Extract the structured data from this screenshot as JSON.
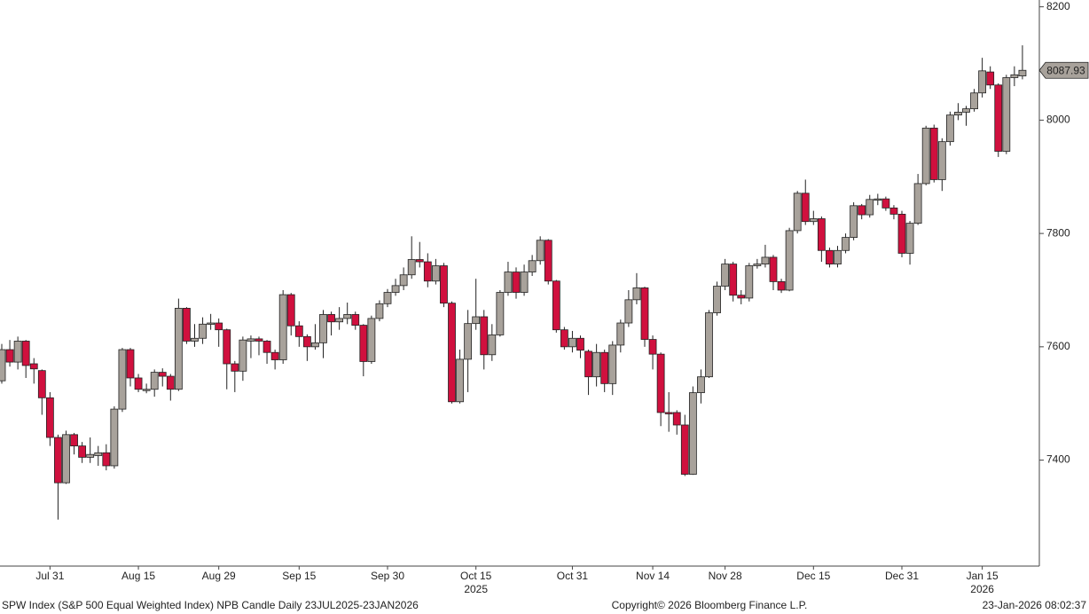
{
  "chart_data": {
    "type": "candlestick",
    "categories": [
      null,
      null,
      null,
      null,
      null,
      null,
      "Jul 31",
      null,
      null,
      null,
      null,
      null,
      null,
      null,
      null,
      null,
      null,
      "Aug 15",
      null,
      null,
      null,
      null,
      null,
      null,
      null,
      null,
      null,
      "Aug 29",
      null,
      null,
      null,
      null,
      null,
      null,
      null,
      null,
      null,
      "Sep 15",
      null,
      null,
      null,
      null,
      null,
      null,
      null,
      null,
      null,
      null,
      "Sep 30",
      null,
      null,
      null,
      null,
      null,
      null,
      null,
      null,
      null,
      null,
      "Oct 15",
      null,
      null,
      null,
      null,
      null,
      null,
      null,
      null,
      null,
      null,
      null,
      "Oct 31",
      null,
      null,
      null,
      null,
      null,
      null,
      null,
      null,
      null,
      "Nov 14",
      null,
      null,
      null,
      null,
      null,
      null,
      null,
      null,
      "Nov 28",
      null,
      null,
      null,
      null,
      null,
      null,
      null,
      null,
      null,
      null,
      "Dec 15",
      null,
      null,
      null,
      null,
      null,
      null,
      null,
      null,
      null,
      null,
      "Dec 31",
      null,
      null,
      null,
      null,
      null,
      null,
      null,
      null,
      null,
      "Jan 15",
      null,
      null,
      null,
      null,
      null
    ],
    "year_labels": [
      {
        "label": "2025",
        "at": "Oct 15"
      },
      {
        "label": "2026",
        "at": "Jan 15"
      }
    ],
    "open": [
      7540,
      7595,
      7573,
      7610,
      7570,
      7558,
      7510,
      7440,
      7360,
      7445,
      7425,
      7405,
      7408,
      7413,
      7390,
      7490,
      7595,
      7545,
      7523,
      7525,
      7555,
      7548,
      7525,
      7668,
      7610,
      7615,
      7640,
      7642,
      7630,
      7570,
      7557,
      7610,
      7614,
      7610,
      7590,
      7577,
      7692,
      7637,
      7618,
      7600,
      7607,
      7657,
      7644,
      7650,
      7657,
      7638,
      7574,
      7650,
      7676,
      7696,
      7708,
      7727,
      7754,
      7750,
      7716,
      7743,
      7677,
      7503,
      7578,
      7641,
      7653,
      7586,
      7621,
      7696,
      7732,
      7696,
      7732,
      7752,
      7788,
      7716,
      7630,
      7600,
      7615,
      7592,
      7547,
      7590,
      7535,
      7603,
      7642,
      7683,
      7704,
      7613,
      7587,
      7484,
      7484,
      7462,
      7375,
      7519,
      7547,
      7660,
      7707,
      7746,
      7691,
      7686,
      7743,
      7746,
      7758,
      7715,
      7700,
      7805,
      7871,
      7821,
      7826,
      7770,
      7746,
      7770,
      7793,
      7849,
      7833,
      7860,
      7861,
      7845,
      7834,
      7765,
      7818,
      7888,
      7986,
      7895,
      7962,
      8009,
      8014,
      8020,
      8048,
      8085,
      8062,
      7945,
      8075,
      8078
    ],
    "high": [
      7605,
      7612,
      7618,
      7612,
      7580,
      7560,
      7520,
      7445,
      7452,
      7448,
      7432,
      7440,
      7425,
      7428,
      7495,
      7598,
      7598,
      7552,
      7535,
      7560,
      7562,
      7552,
      7685,
      7670,
      7640,
      7652,
      7658,
      7650,
      7632,
      7575,
      7618,
      7620,
      7618,
      7612,
      7595,
      7700,
      7695,
      7645,
      7622,
      7640,
      7665,
      7662,
      7670,
      7678,
      7662,
      7640,
      7655,
      7682,
      7702,
      7720,
      7740,
      7795,
      7785,
      7765,
      7755,
      7748,
      7680,
      7595,
      7665,
      7720,
      7665,
      7640,
      7700,
      7750,
      7740,
      7745,
      7762,
      7795,
      7790,
      7718,
      7635,
      7628,
      7620,
      7595,
      7605,
      7595,
      7610,
      7648,
      7700,
      7730,
      7706,
      7620,
      7590,
      7520,
      7488,
      7480,
      7530,
      7560,
      7665,
      7715,
      7755,
      7750,
      7700,
      7748,
      7755,
      7780,
      7762,
      7720,
      7810,
      7875,
      7895,
      7840,
      7830,
      7775,
      7778,
      7800,
      7855,
      7852,
      7868,
      7870,
      7865,
      7850,
      7840,
      7822,
      7905,
      7990,
      7992,
      7968,
      8015,
      8030,
      8025,
      8055,
      8110,
      8095,
      8065,
      8080,
      8095,
      8132
    ],
    "low": [
      7535,
      7565,
      7560,
      7545,
      7535,
      7480,
      7425,
      7295,
      7358,
      7410,
      7395,
      7395,
      7390,
      7382,
      7385,
      7485,
      7530,
      7520,
      7518,
      7512,
      7530,
      7505,
      7522,
      7605,
      7600,
      7605,
      7630,
      7600,
      7525,
      7520,
      7540,
      7580,
      7585,
      7570,
      7560,
      7570,
      7620,
      7600,
      7575,
      7595,
      7580,
      7620,
      7630,
      7640,
      7630,
      7548,
      7570,
      7645,
      7670,
      7690,
      7700,
      7720,
      7740,
      7705,
      7710,
      7670,
      7500,
      7500,
      7520,
      7630,
      7560,
      7575,
      7618,
      7690,
      7685,
      7690,
      7725,
      7745,
      7710,
      7625,
      7595,
      7590,
      7580,
      7515,
      7530,
      7520,
      7515,
      7590,
      7635,
      7675,
      7600,
      7560,
      7460,
      7450,
      7445,
      7372,
      7374,
      7500,
      7545,
      7655,
      7700,
      7680,
      7675,
      7680,
      7738,
      7740,
      7700,
      7695,
      7698,
      7800,
      7815,
      7815,
      7750,
      7740,
      7740,
      7765,
      7788,
      7825,
      7828,
      7850,
      7840,
      7825,
      7758,
      7745,
      7815,
      7885,
      7890,
      7875,
      7955,
      8000,
      7990,
      8015,
      8040,
      8055,
      7935,
      7940,
      8060,
      8072
    ],
    "close": [
      7595,
      7573,
      7610,
      7567,
      7561,
      7510,
      7440,
      7360,
      7445,
      7425,
      7405,
      7410,
      7413,
      7390,
      7490,
      7595,
      7545,
      7525,
      7525,
      7555,
      7548,
      7525,
      7668,
      7610,
      7615,
      7640,
      7642,
      7630,
      7570,
      7557,
      7612,
      7614,
      7610,
      7590,
      7577,
      7692,
      7637,
      7618,
      7600,
      7607,
      7657,
      7644,
      7650,
      7657,
      7638,
      7574,
      7650,
      7676,
      7696,
      7708,
      7727,
      7754,
      7750,
      7716,
      7743,
      7677,
      7503,
      7578,
      7641,
      7653,
      7586,
      7621,
      7696,
      7732,
      7696,
      7732,
      7752,
      7788,
      7716,
      7630,
      7600,
      7615,
      7594,
      7547,
      7590,
      7535,
      7603,
      7642,
      7683,
      7704,
      7613,
      7587,
      7484,
      7482,
      7462,
      7375,
      7519,
      7547,
      7660,
      7707,
      7746,
      7691,
      7686,
      7743,
      7746,
      7758,
      7715,
      7700,
      7805,
      7871,
      7821,
      7826,
      7770,
      7746,
      7770,
      7793,
      7849,
      7833,
      7860,
      7861,
      7845,
      7834,
      7765,
      7818,
      7888,
      7986,
      7895,
      7962,
      8009,
      8014,
      8020,
      8048,
      8087,
      8062,
      7945,
      8075,
      8080,
      8087.93
    ],
    "up_color": "#a8a29b",
    "down_color": "#d0103e",
    "wick_color": "#222222",
    "ylim": [
      7213,
      8212
    ],
    "yticks": [
      7400,
      7600,
      7800,
      8000,
      8200
    ],
    "footer": {
      "left": "SPW Index (S&P 500 Equal Weighted Index) NPB Candle Daily 23JUL2025-23JAN2026",
      "center": "Copyright© 2026 Bloomberg Finance L.P.",
      "right": "23-Jan-2026 08:02:37"
    }
  }
}
